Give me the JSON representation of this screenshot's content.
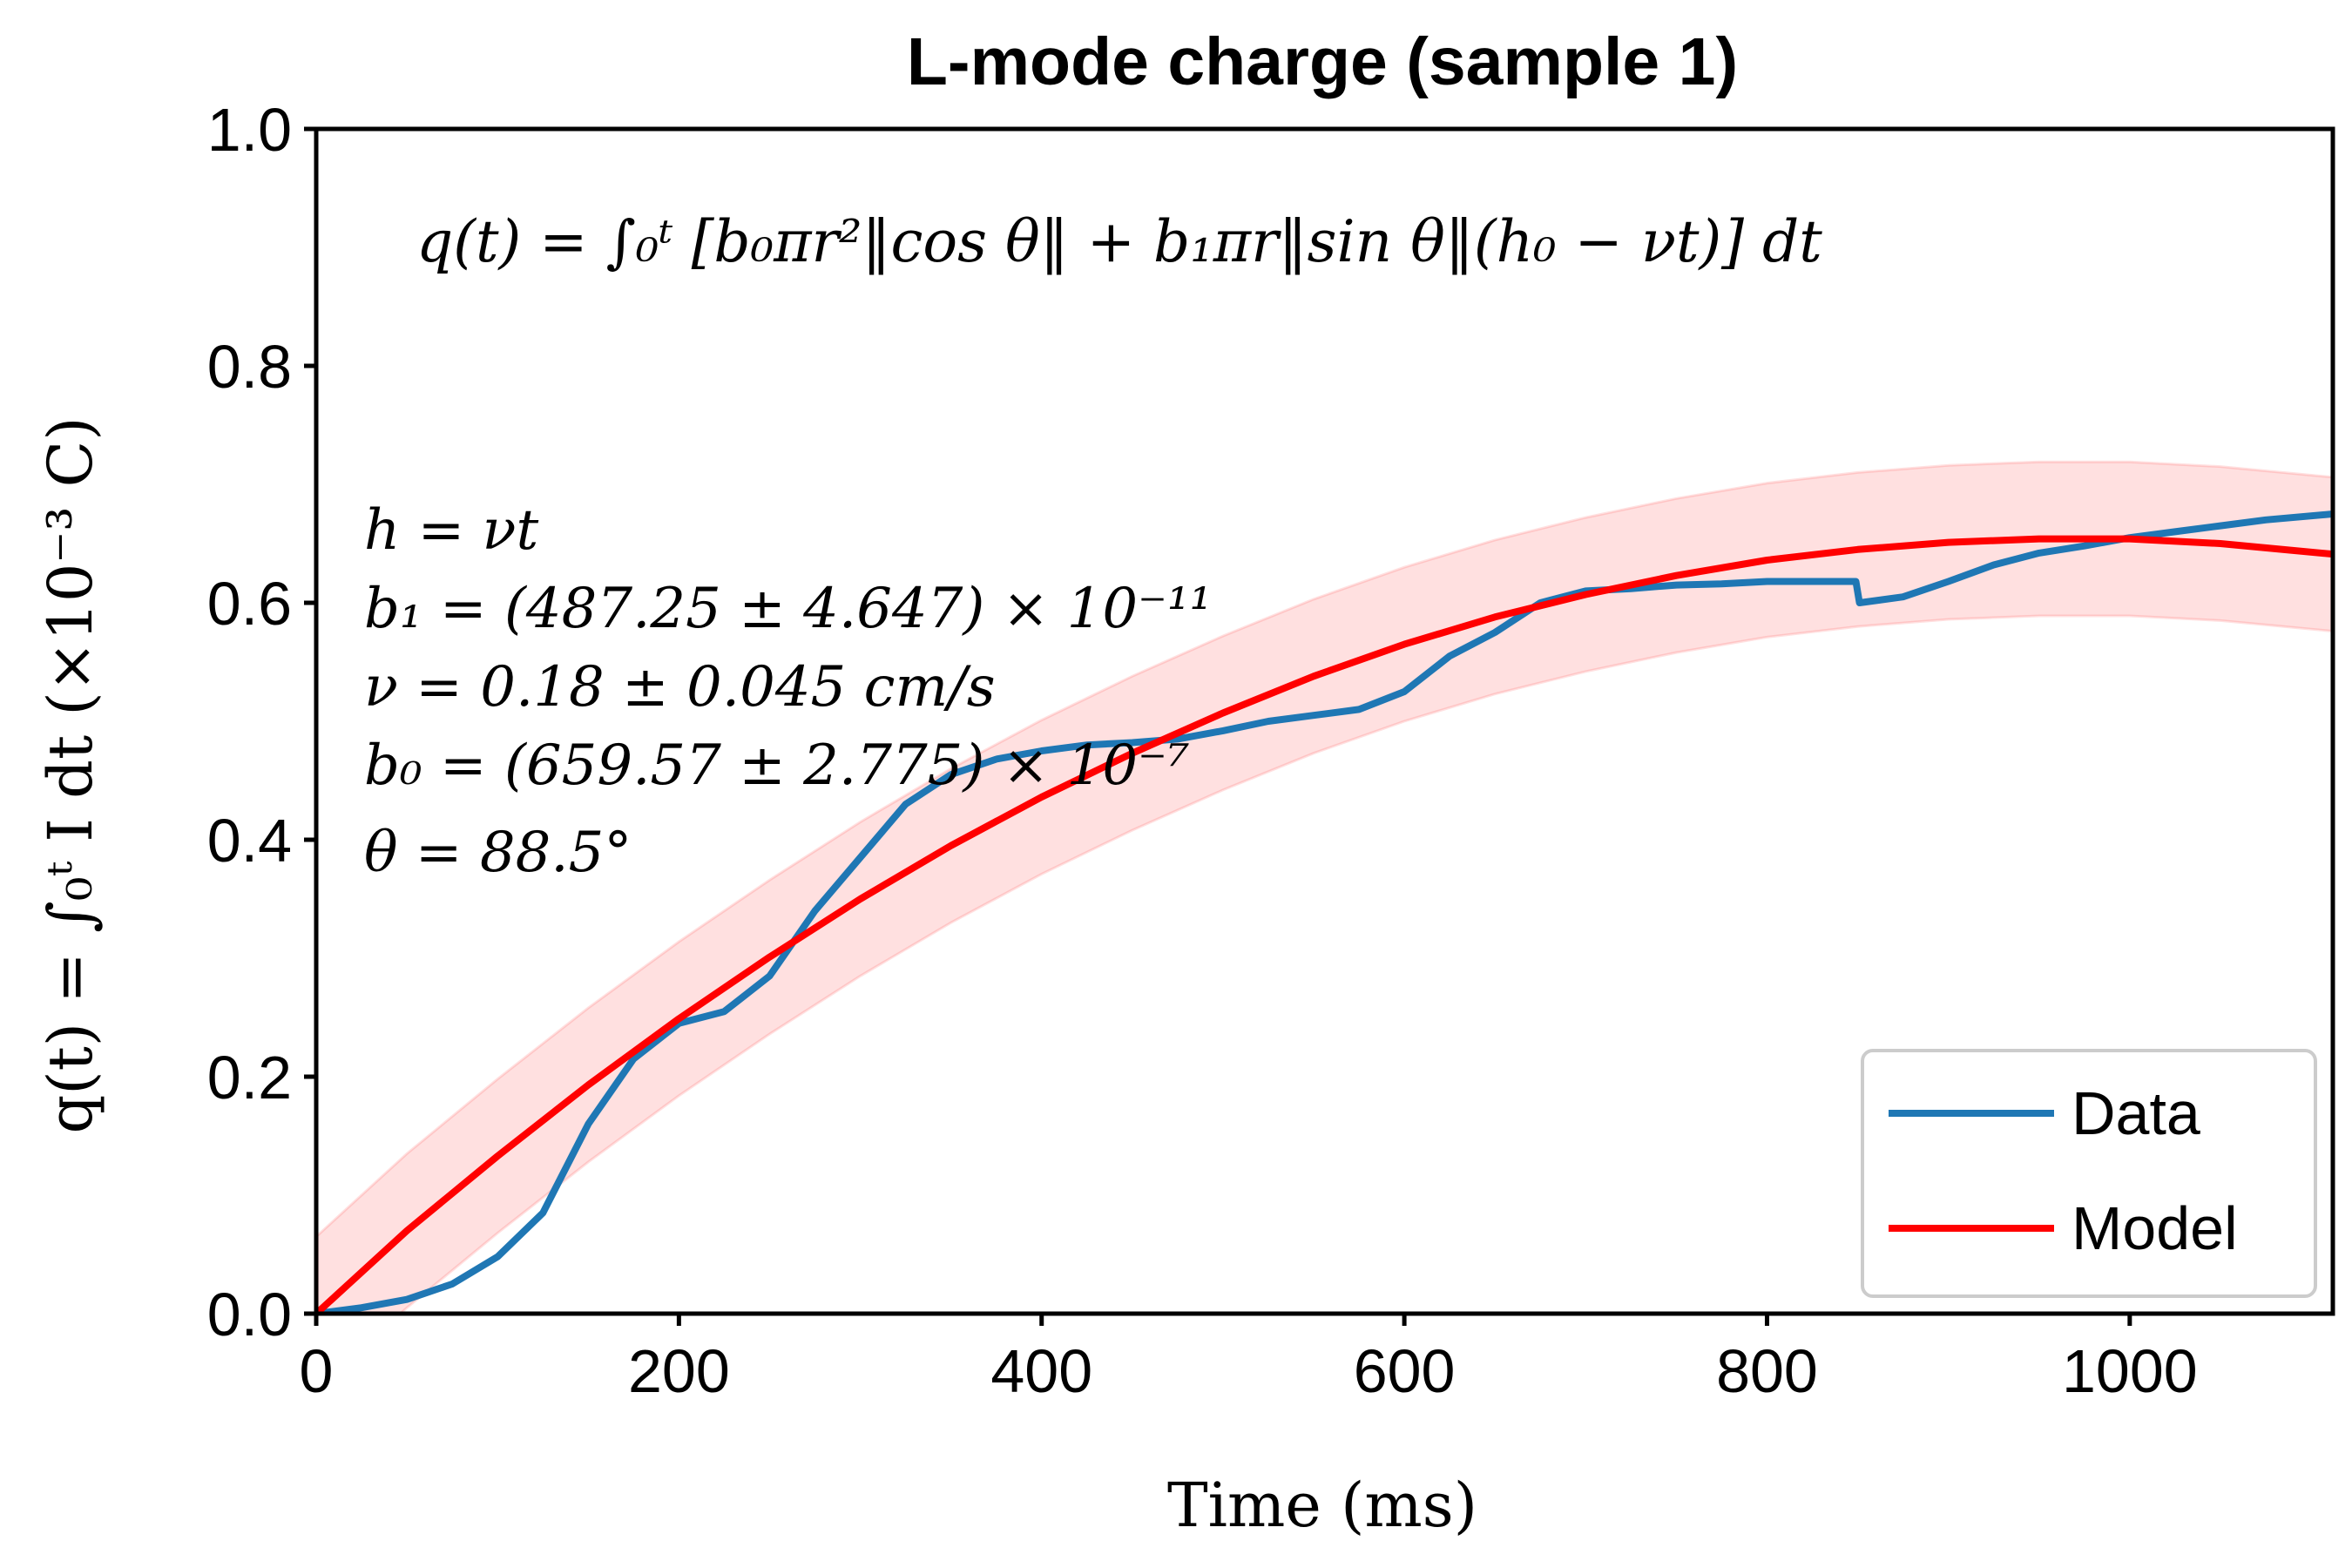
{
  "chart_data": {
    "type": "line",
    "title": "L-mode charge (sample 1)",
    "xlabel": "Time (ms)",
    "ylabel": "q(t) = ∫₀ᵗ I dt (×10⁻³ C)",
    "xlim": [
      0,
      1112
    ],
    "ylim": [
      0,
      1.0
    ],
    "xticks": [
      "0",
      "200",
      "400",
      "600",
      "800",
      "1000"
    ],
    "yticks": [
      "0.0",
      "0.2",
      "0.4",
      "0.6",
      "0.8",
      "1.0"
    ],
    "xtick_values": [
      0,
      200,
      400,
      600,
      800,
      1000
    ],
    "ytick_values": [
      0,
      0.2,
      0.4,
      0.6,
      0.8,
      1.0
    ],
    "equation": "q(t) = ∫₀ᵗ [b₀πr²‖cos θ‖ + b₁πr‖sin θ‖(h₀ − νt)] dt",
    "annotations": [
      "h = νt",
      "b₁ = (487.25 ± 4.647) × 10⁻¹¹",
      "ν = 0.18 ± 0.045 cm/s",
      "b₀ = (659.57 ± 2.775) × 10⁻⁷",
      "θ = 88.5°"
    ],
    "legend_position": "lower-right",
    "series": [
      {
        "name": "Data",
        "color": "#1f77b4",
        "x": [
          0,
          25,
          50,
          75,
          100,
          125,
          150,
          175,
          200,
          225,
          250,
          275,
          300,
          325,
          350,
          375,
          400,
          425,
          450,
          475,
          500,
          525,
          550,
          575,
          600,
          625,
          650,
          675,
          700,
          725,
          750,
          775,
          800,
          825,
          849,
          851,
          875,
          900,
          925,
          950,
          975,
          1000,
          1025,
          1050,
          1075,
          1112
        ],
        "y": [
          0.0,
          0.005,
          0.012,
          0.025,
          0.048,
          0.085,
          0.16,
          0.215,
          0.245,
          0.255,
          0.285,
          0.34,
          0.385,
          0.43,
          0.455,
          0.468,
          0.475,
          0.48,
          0.482,
          0.485,
          0.492,
          0.5,
          0.505,
          0.51,
          0.525,
          0.555,
          0.575,
          0.6,
          0.61,
          0.612,
          0.615,
          0.616,
          0.618,
          0.618,
          0.618,
          0.6,
          0.605,
          0.618,
          0.632,
          0.642,
          0.648,
          0.655,
          0.66,
          0.665,
          0.67,
          0.675
        ]
      },
      {
        "name": "Model",
        "color": "#ff0000",
        "band": 0.065,
        "x": [
          0,
          50,
          100,
          150,
          200,
          250,
          300,
          350,
          400,
          450,
          500,
          550,
          600,
          650,
          700,
          750,
          800,
          850,
          900,
          950,
          1000,
          1050,
          1112
        ],
        "y": [
          0.0,
          0.07,
          0.133,
          0.193,
          0.249,
          0.301,
          0.35,
          0.395,
          0.436,
          0.473,
          0.507,
          0.538,
          0.565,
          0.588,
          0.607,
          0.623,
          0.636,
          0.645,
          0.651,
          0.654,
          0.654,
          0.65,
          0.641
        ]
      }
    ]
  }
}
